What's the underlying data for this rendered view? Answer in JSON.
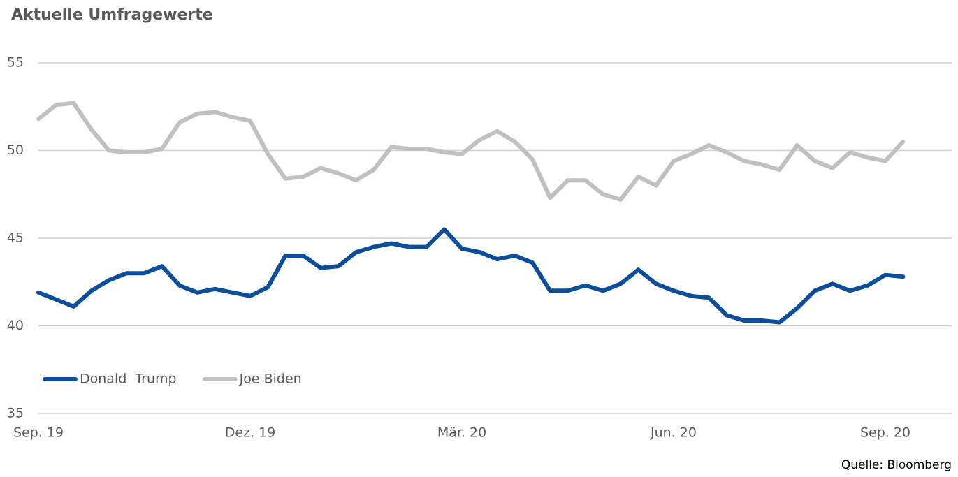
{
  "chart_data": {
    "type": "line",
    "title": "Aktuelle Umfragewerte",
    "source": "Quelle: Bloomberg",
    "categories": [
      "Sep. 19",
      null,
      null,
      null,
      null,
      null,
      null,
      null,
      null,
      null,
      null,
      null,
      "Dez. 19",
      null,
      null,
      null,
      null,
      null,
      null,
      null,
      null,
      null,
      null,
      null,
      "Mär. 20",
      null,
      null,
      null,
      null,
      null,
      null,
      null,
      null,
      null,
      null,
      null,
      "Jun. 20",
      null,
      null,
      null,
      null,
      null,
      null,
      null,
      null,
      null,
      null,
      null,
      "Sep. 20",
      null
    ],
    "series": [
      {
        "name": "Donald  Trump",
        "color": "#0b4f9c",
        "values": [
          41.9,
          41.5,
          41.1,
          42.0,
          42.6,
          43.0,
          43.0,
          43.4,
          42.3,
          41.9,
          42.1,
          41.9,
          41.7,
          42.2,
          44.0,
          44.0,
          43.3,
          43.4,
          44.2,
          44.5,
          44.7,
          44.5,
          44.5,
          45.5,
          44.4,
          44.2,
          43.8,
          44.0,
          43.6,
          42.0,
          42.0,
          42.3,
          42.0,
          42.4,
          43.2,
          42.4,
          42.0,
          41.7,
          41.6,
          40.6,
          40.3,
          40.3,
          40.2,
          41.0,
          42.0,
          42.4,
          42.0,
          42.3,
          42.9,
          42.8
        ]
      },
      {
        "name": "Joe Biden",
        "color": "#c0c0c0",
        "values": [
          51.8,
          52.6,
          52.7,
          51.2,
          50.0,
          49.9,
          49.9,
          50.1,
          51.6,
          52.1,
          52.2,
          51.9,
          51.7,
          49.8,
          48.4,
          48.5,
          49.0,
          48.7,
          48.3,
          48.9,
          50.2,
          50.1,
          50.1,
          49.9,
          49.8,
          50.6,
          51.1,
          50.5,
          49.5,
          47.3,
          48.3,
          48.3,
          47.5,
          47.2,
          48.5,
          48.0,
          49.4,
          49.8,
          50.3,
          49.9,
          49.4,
          49.2,
          48.9,
          50.3,
          49.4,
          49.0,
          49.9,
          49.6,
          49.4,
          50.5
        ]
      }
    ],
    "ylim": [
      35,
      55
    ],
    "yticks": [
      35,
      40,
      45,
      50,
      55
    ],
    "grid": true,
    "legend": "lower left"
  }
}
